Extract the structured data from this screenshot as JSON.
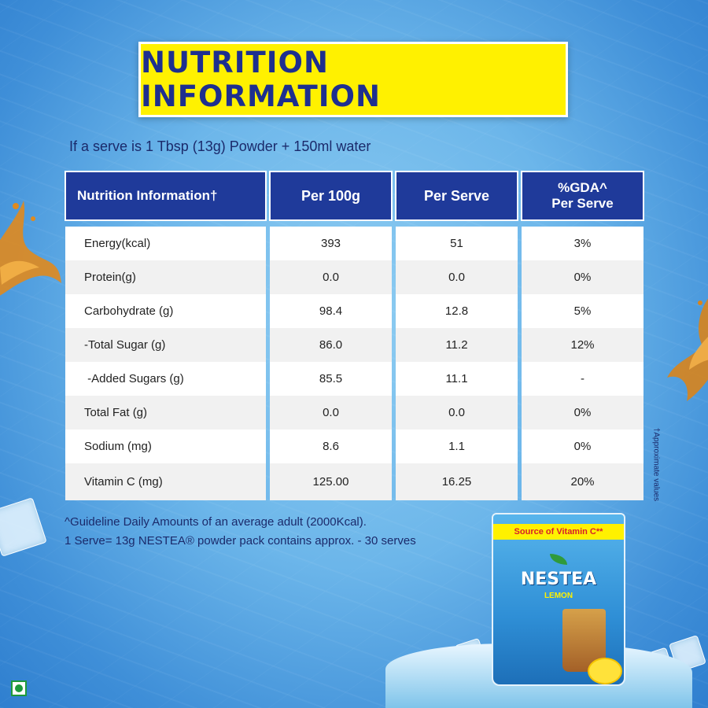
{
  "title": "NUTRITION INFORMATION",
  "serve_note": "If a serve is 1 Tbsp (13g) Powder + 150ml water",
  "table": {
    "headers": [
      "Nutrition Information†",
      "Per 100g",
      "Per Serve",
      "%GDA^\nPer Serve"
    ],
    "rows": [
      [
        "Energy(kcal)",
        "393",
        "51",
        "3%"
      ],
      [
        "Protein(g)",
        "0.0",
        "0.0",
        "0%"
      ],
      [
        "Carbohydrate (g)",
        "98.4",
        "12.8",
        "5%"
      ],
      [
        "-Total Sugar (g)",
        "86.0",
        "11.2",
        "12%"
      ],
      [
        " -Added Sugars (g)",
        "85.5",
        "11.1",
        "-"
      ],
      [
        "Total Fat (g)",
        "0.0",
        "0.0",
        "0%"
      ],
      [
        "Sodium (mg)",
        "8.6",
        "1.1",
        "0%"
      ],
      [
        "Vitamin C (mg)",
        "125.00",
        "16.25",
        "20%"
      ]
    ]
  },
  "footnotes": [
    "^Guideline Daily Amounts of an average adult (2000Kcal).",
    "1 Serve= 13g NESTEA® powder pack contains approx. - 30 serves"
  ],
  "side_note": "†Approximate values",
  "pack": {
    "banner": "Source of Vitamin C**",
    "brand": "NESTEA",
    "variant": "LEMON"
  },
  "colors": {
    "title_bg": "#fff100",
    "title_text": "#1e2f8f",
    "header_bg": "#1f3a9a",
    "background": "#6cb6ea"
  },
  "icons": [
    "veg-mark-icon",
    "leaf-icon",
    "ice-cube-icon",
    "tea-splash-icon",
    "lemon-icon"
  ]
}
